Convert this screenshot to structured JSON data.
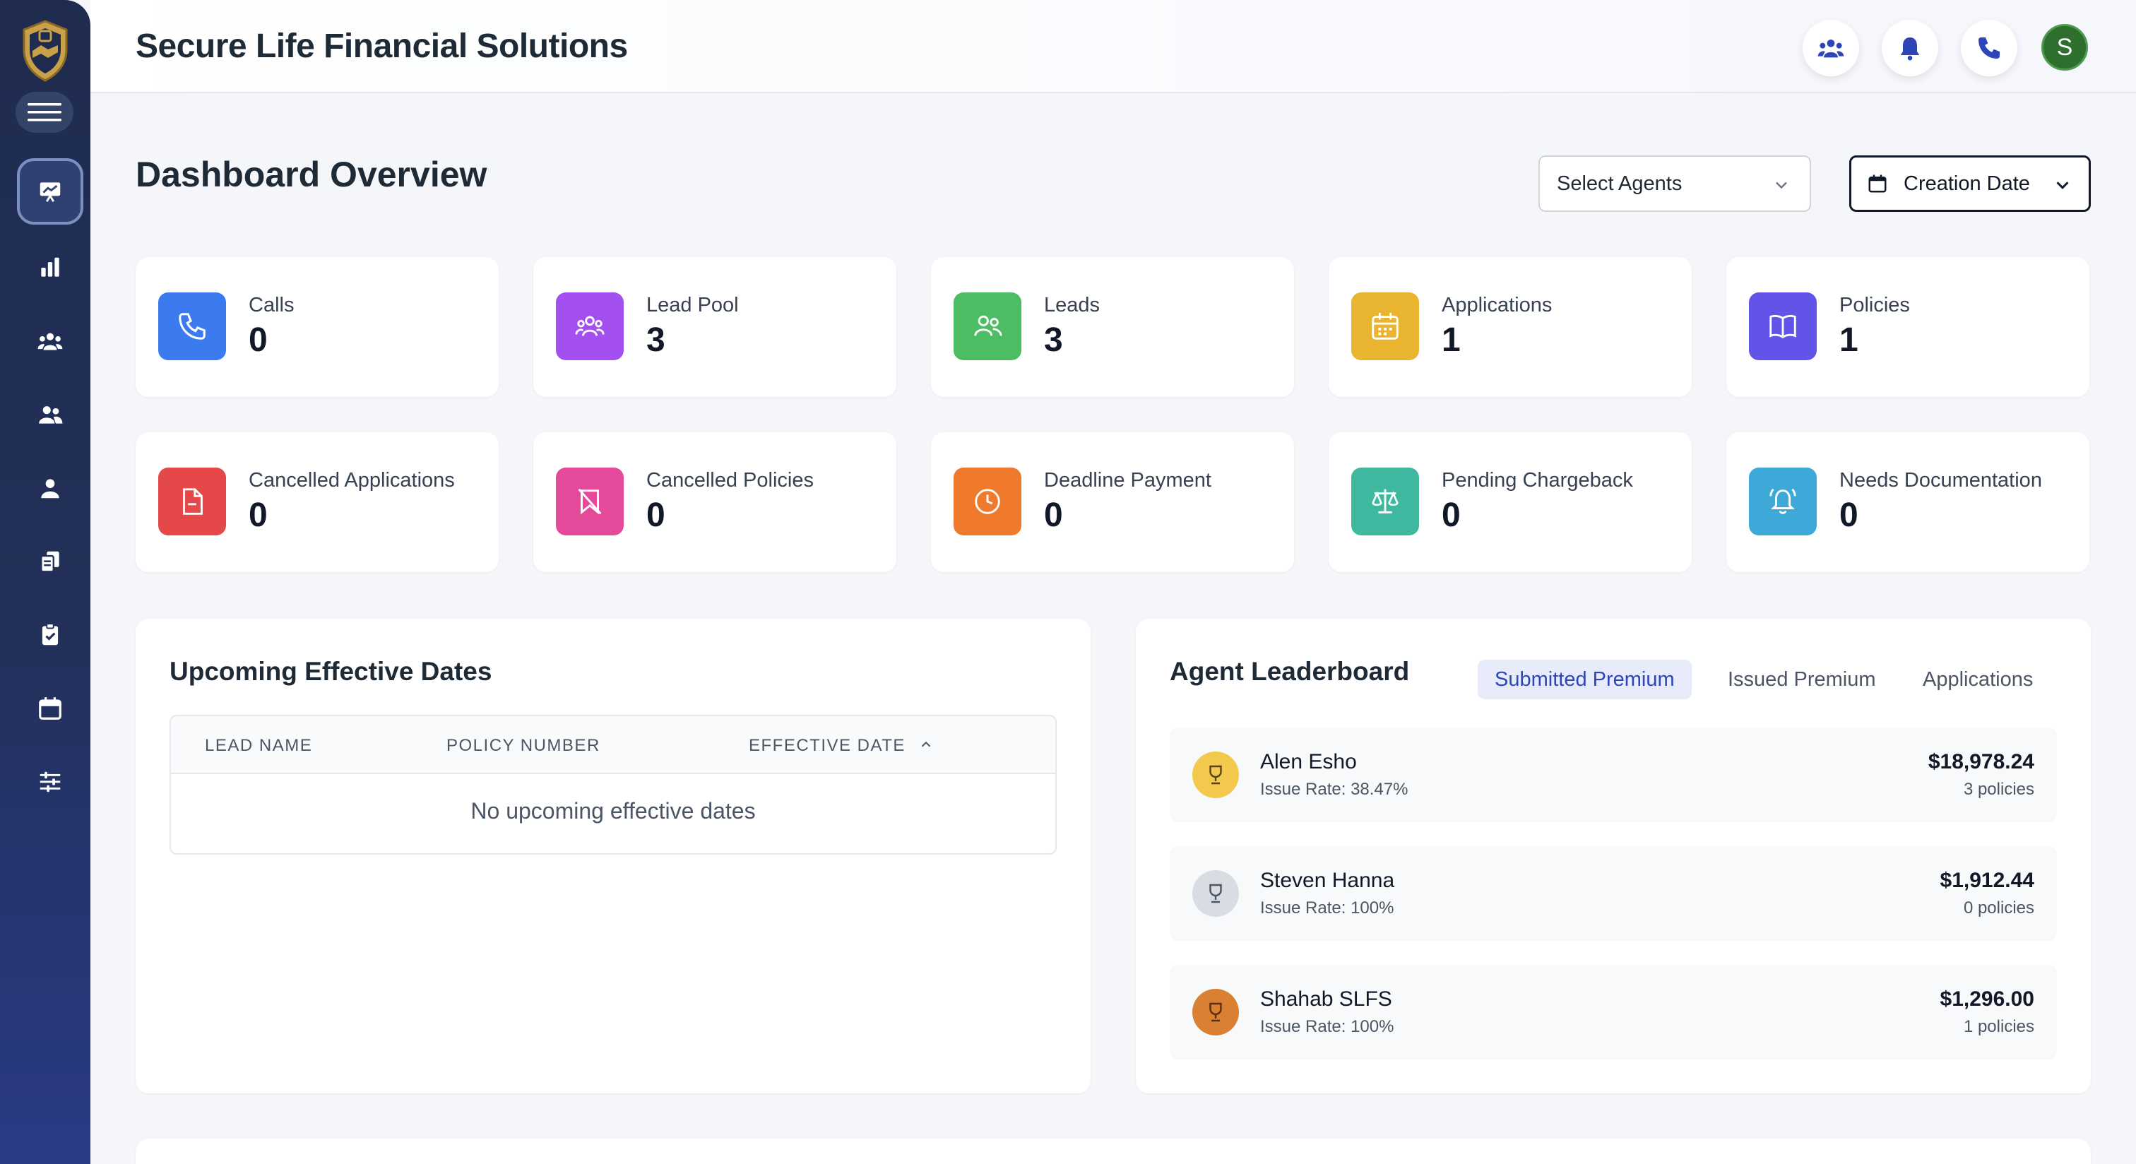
{
  "header": {
    "title": "Secure Life Financial Solutions",
    "avatar_initial": "S"
  },
  "page": {
    "title": "Dashboard Overview",
    "filters": {
      "agents_placeholder": "Select Agents",
      "date_label": "Creation Date"
    }
  },
  "stats": [
    {
      "label": "Calls",
      "value": "0",
      "icon": "phone-icon",
      "color": "#3b7bef"
    },
    {
      "label": "Lead Pool",
      "value": "3",
      "icon": "users-group-icon",
      "color": "#a44ff0"
    },
    {
      "label": "Leads",
      "value": "3",
      "icon": "users-icon",
      "color": "#4dbd63"
    },
    {
      "label": "Applications",
      "value": "1",
      "icon": "calendar-icon",
      "color": "#e9b531"
    },
    {
      "label": "Policies",
      "value": "1",
      "icon": "book-icon",
      "color": "#6254e8"
    },
    {
      "label": "Cancelled Applications",
      "value": "0",
      "icon": "file-icon",
      "color": "#e44848"
    },
    {
      "label": "Cancelled Policies",
      "value": "0",
      "icon": "bookmark-off-icon",
      "color": "#e5499a"
    },
    {
      "label": "Deadline Payment",
      "value": "0",
      "icon": "clock-icon",
      "color": "#ef7a2c"
    },
    {
      "label": "Pending Chargeback",
      "value": "0",
      "icon": "scale-icon",
      "color": "#3fb8a0"
    },
    {
      "label": "Needs Documentation",
      "value": "0",
      "icon": "bell-ring-icon",
      "color": "#3ea8d8"
    }
  ],
  "upcoming": {
    "title": "Upcoming Effective Dates",
    "columns": [
      "LEAD NAME",
      "POLICY NUMBER",
      "EFFECTIVE DATE"
    ],
    "empty_message": "No upcoming effective dates"
  },
  "leaderboard": {
    "title": "Agent Leaderboard",
    "tabs": [
      "Submitted Premium",
      "Issued Premium",
      "Applications"
    ],
    "active_tab": "Submitted Premium",
    "rows": [
      {
        "name": "Alen Esho",
        "rate": "Issue Rate: 38.47%",
        "amount": "$18,978.24",
        "policies": "3 policies",
        "medal": "gold"
      },
      {
        "name": "Steven Hanna",
        "rate": "Issue Rate: 100%",
        "amount": "$1,912.44",
        "policies": "0 policies",
        "medal": "silver"
      },
      {
        "name": "Shahab SLFS",
        "rate": "Issue Rate: 100%",
        "amount": "$1,296.00",
        "policies": "1 policies",
        "medal": "bronze"
      }
    ]
  },
  "colors": {
    "sidebar": "#1f2c4f",
    "accent": "#2e45b8",
    "gold": "#f2c94c",
    "silver": "#d9dde3",
    "bronze": "#d98033"
  }
}
